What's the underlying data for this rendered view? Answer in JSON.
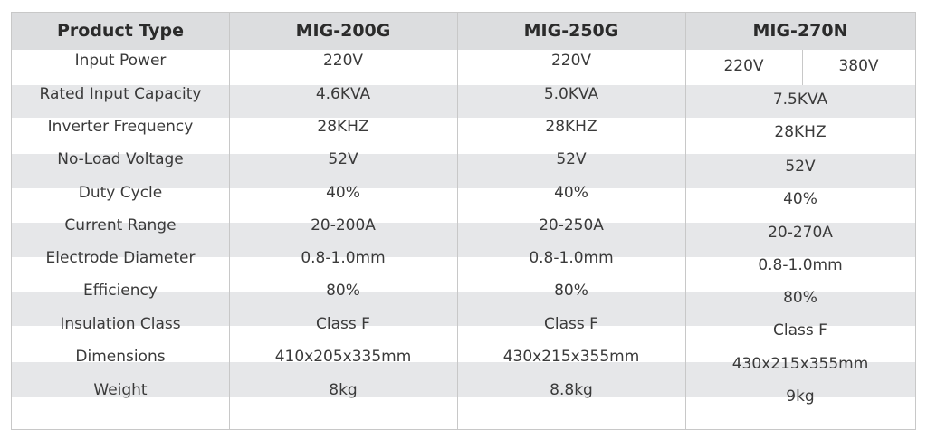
{
  "headers": [
    "Product Type",
    "MIG-200G",
    "MIG-250G",
    "MIG-270N"
  ],
  "rows": [
    {
      "label": "Input Power",
      "c1": "220V",
      "c2": "220V",
      "c3a": "220V",
      "c3b": "380V"
    },
    {
      "label": "Rated Input Capacity",
      "c1": "4.6KVA",
      "c2": "5.0KVA",
      "c3": "7.5KVA"
    },
    {
      "label": "Inverter Frequency",
      "c1": "28KHZ",
      "c2": "28KHZ",
      "c3": "28KHZ"
    },
    {
      "label": "No-Load Voltage",
      "c1": "52V",
      "c2": "52V",
      "c3": "52V"
    },
    {
      "label": "Duty Cycle",
      "c1": "40%",
      "c2": "40%",
      "c3": "40%"
    },
    {
      "label": "Current Range",
      "c1": "20-200A",
      "c2": "20-250A",
      "c3": "20-270A"
    },
    {
      "label": "Electrode Diameter",
      "c1": "0.8-1.0mm",
      "c2": "0.8-1.0mm",
      "c3": "0.8-1.0mm"
    },
    {
      "label": "Efficiency",
      "c1": "80%",
      "c2": "80%",
      "c3": "80%"
    },
    {
      "label": "Insulation Class",
      "c1": "Class F",
      "c2": "Class F",
      "c3": "Class F"
    },
    {
      "label": "Dimensions",
      "c1": "410x205x335mm",
      "c2": "430x215x355mm",
      "c3": "430x215x355mm"
    },
    {
      "label": "Weight",
      "c1": "8kg",
      "c2": "8.8kg",
      "c3": "9kg"
    }
  ]
}
